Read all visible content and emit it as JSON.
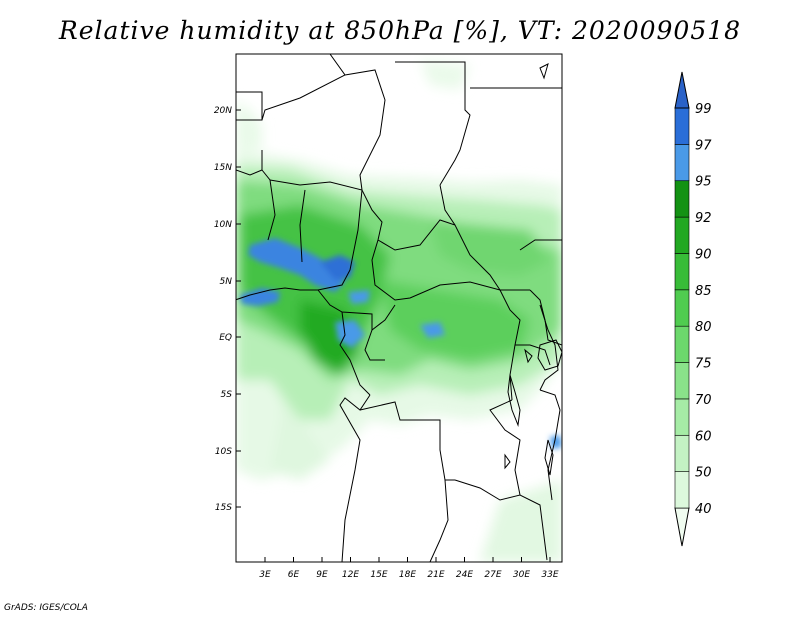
{
  "title": "Relative humidity at 850hPa [%], VT: 2020090518",
  "footer": "GrADS: IGES/COLA",
  "map": {
    "lat_labels": [
      "20N",
      "15N",
      "10N",
      "5N",
      "EQ",
      "5S",
      "10S",
      "15S"
    ],
    "lon_labels": [
      "3E",
      "6E",
      "9E",
      "12E",
      "15E",
      "18E",
      "21E",
      "24E",
      "27E",
      "30E",
      "33E"
    ]
  },
  "colorbar": {
    "levels": [
      "40",
      "50",
      "60",
      "70",
      "75",
      "80",
      "85",
      "90",
      "92",
      "95",
      "97",
      "99"
    ],
    "colors": [
      "#f0fcf0",
      "#dcf8dc",
      "#c4f2c4",
      "#a6eca6",
      "#8ae28a",
      "#6cd86c",
      "#50cc50",
      "#38bc38",
      "#22a822",
      "#139213",
      "#4a9ae8",
      "#2a6ed8",
      "#2a62c8"
    ]
  }
}
